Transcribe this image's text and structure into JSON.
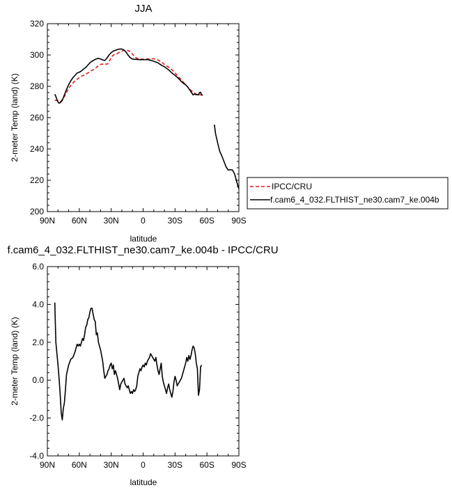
{
  "chart_data": [
    {
      "type": "line",
      "title": "JJA",
      "xlabel": "latitude",
      "ylabel": "2-meter Temp (land) (K)",
      "xlim": [
        90,
        -90
      ],
      "ylim": [
        200,
        320
      ],
      "x_ticks": [
        90,
        60,
        30,
        0,
        -30,
        -60,
        -90
      ],
      "x_tick_labels": [
        "90N",
        "60N",
        "30N",
        "0",
        "30S",
        "60S",
        "90S"
      ],
      "y_ticks": [
        200,
        220,
        240,
        260,
        280,
        300,
        320
      ],
      "y_tick_labels": [
        "200",
        "220",
        "240",
        "260",
        "280",
        "300",
        "320"
      ],
      "legend_placement": "right",
      "series": [
        {
          "name": "IPCC/CRU",
          "color": "#e41a1c",
          "dashed": true,
          "x": [
            83,
            82,
            80,
            79,
            78,
            77,
            76,
            74,
            72,
            70,
            68,
            66,
            64,
            62,
            60,
            58,
            56,
            54,
            52,
            50,
            48,
            46,
            44,
            42,
            40,
            38,
            36,
            34,
            32,
            30,
            28,
            26,
            24,
            22,
            20,
            18,
            16,
            14,
            12,
            10,
            8,
            6,
            4,
            2,
            0,
            -2,
            -4,
            -6,
            -8,
            -10,
            -12,
            -14,
            -16,
            -18,
            -20,
            -22,
            -24,
            -26,
            -28,
            -30,
            -32,
            -34,
            -36,
            -38,
            -40,
            -42,
            -44,
            -46,
            -48,
            -50,
            -52,
            -54,
            -56
          ],
          "y": [
            271.2,
            271.0,
            270.8,
            270.4,
            270.2,
            270.6,
            271.5,
            273.5,
            276.0,
            278.5,
            280.5,
            282.0,
            283.5,
            284.5,
            285.5,
            286.5,
            287.0,
            287.8,
            288.5,
            289.3,
            290.2,
            291.0,
            292.0,
            293.2,
            294.0,
            294.2,
            294.5,
            294.0,
            295.5,
            298.5,
            300.0,
            300.5,
            301.0,
            301.8,
            302.5,
            303.0,
            303.0,
            302.8,
            302.0,
            300.5,
            299.0,
            297.9,
            297.6,
            297.4,
            297.3,
            297.4,
            297.5,
            297.5,
            297.6,
            297.6,
            297.3,
            296.8,
            296.0,
            295.0,
            294.0,
            293.2,
            292.2,
            291.2,
            290.0,
            288.5,
            287.0,
            285.5,
            284.2,
            282.5,
            281.0,
            279.5,
            278.0,
            276.8,
            275.8,
            275.0,
            274.8,
            274.5,
            274.3
          ]
        },
        {
          "name": "f.cam6_4_032.FLTHIST_ne30.cam7_ke.004b",
          "color": "#000000",
          "dashed": false,
          "x": [
            83,
            82,
            81,
            80,
            79,
            78,
            77,
            76,
            74,
            72,
            70,
            68,
            66,
            64,
            62,
            60,
            58,
            56,
            54,
            52,
            50,
            48,
            46,
            44,
            42,
            40,
            38,
            36,
            34,
            32,
            30,
            28,
            26,
            24,
            22,
            20,
            18,
            16,
            14,
            12,
            10,
            8,
            6,
            4,
            2,
            0,
            -2,
            -4,
            -6,
            -8,
            -10,
            -12,
            -14,
            -16,
            -18,
            -20,
            -22,
            -24,
            -26,
            -28,
            -30,
            -32,
            -34,
            -36,
            -38,
            -40,
            -42,
            -44,
            -46,
            -47,
            -48,
            -50,
            -52,
            -53,
            -54,
            -55,
            -56,
            null,
            -67,
            -68,
            -70,
            -72,
            -74,
            -76,
            -78,
            -80,
            -82,
            -84,
            -86,
            -88,
            -90
          ],
          "y": [
            275.0,
            273.5,
            271.5,
            270.0,
            269.2,
            269.5,
            270.2,
            271.0,
            274.5,
            278.0,
            281.0,
            283.5,
            285.5,
            287.0,
            288.5,
            289.0,
            289.8,
            291.0,
            292.0,
            293.5,
            295.0,
            296.0,
            296.8,
            297.5,
            297.8,
            297.5,
            296.8,
            296.5,
            298.0,
            300.0,
            301.5,
            302.5,
            303.0,
            303.5,
            303.8,
            303.8,
            303.2,
            301.8,
            299.8,
            298.2,
            297.4,
            297.2,
            297.2,
            297.0,
            297.1,
            297.0,
            297.0,
            297.1,
            296.8,
            296.4,
            296.0,
            295.5,
            295.0,
            294.0,
            293.2,
            292.5,
            291.5,
            290.5,
            289.2,
            288.0,
            287.0,
            285.8,
            284.5,
            283.0,
            281.8,
            281.0,
            279.5,
            277.5,
            275.5,
            274.5,
            275.0,
            274.7,
            274.5,
            276.0,
            276.2,
            274.5,
            274.8,
            null,
            255.5,
            250.0,
            244.0,
            238.5,
            235.5,
            232.0,
            228.5,
            226.5,
            226.8,
            226.5,
            224.0,
            219.0,
            214.5
          ]
        }
      ]
    },
    {
      "type": "line",
      "title": "f.cam6_4_032.FLTHIST_ne30.cam7_ke.004b - IPCC/CRU",
      "xlabel": "latitude",
      "ylabel": "2-meter Temp (land) (K)",
      "xlim": [
        90,
        -90
      ],
      "ylim": [
        -4.0,
        6.0
      ],
      "x_ticks": [
        90,
        60,
        30,
        0,
        -30,
        -60,
        -90
      ],
      "x_tick_labels": [
        "90N",
        "60N",
        "30N",
        "0",
        "30S",
        "60S",
        "90S"
      ],
      "y_ticks": [
        -4.0,
        -2.0,
        0.0,
        2.0,
        4.0,
        6.0
      ],
      "y_tick_labels": [
        "-4.0",
        "-2.0",
        "0.0",
        "2.0",
        "4.0",
        "6.0"
      ],
      "series": [
        {
          "color": "#000000",
          "x": [
            83,
            82.5,
            82,
            81,
            80,
            79,
            78,
            77.5,
            77,
            76,
            75,
            74,
            73,
            72,
            70,
            68,
            66,
            64,
            62,
            61,
            60,
            59,
            58,
            57,
            56,
            55,
            54,
            53,
            52,
            51,
            50,
            49,
            48,
            47,
            46,
            45,
            44,
            43,
            42,
            41,
            40,
            39,
            38,
            37,
            36,
            35,
            34,
            33,
            32,
            31,
            30,
            29,
            28,
            27,
            26,
            25,
            24,
            23,
            22,
            21,
            20,
            19,
            18,
            17,
            16,
            15,
            14,
            13,
            12,
            11,
            10,
            9,
            8,
            7,
            6,
            5,
            4,
            3,
            2,
            1,
            0,
            -1,
            -2,
            -3,
            -4,
            -5,
            -6,
            -7,
            -8,
            -9,
            -10,
            -11,
            -12,
            -13,
            -14,
            -15,
            -16,
            -17,
            -18,
            -19,
            -20,
            -21,
            -22,
            -23,
            -24,
            -25,
            -26,
            -27,
            -28,
            -29,
            -30,
            -31,
            -32,
            -33,
            -34,
            -35,
            -36,
            -37,
            -38,
            -39,
            -40,
            -41,
            -42,
            -43,
            -44,
            -45,
            -46,
            -47,
            -48,
            -49,
            -50,
            -51,
            -52,
            -53,
            -54,
            -55
          ],
          "y": [
            4.1,
            3.0,
            2.0,
            1.4,
            0.8,
            0.1,
            -0.7,
            -1.2,
            -1.7,
            -2.1,
            -1.5,
            -1.2,
            -0.5,
            0.3,
            0.8,
            1.1,
            1.2,
            1.5,
            1.9,
            1.8,
            1.9,
            1.8,
            2.0,
            2.2,
            2.1,
            2.4,
            2.8,
            2.9,
            3.2,
            3.3,
            3.6,
            3.8,
            3.8,
            3.5,
            3.2,
            3.1,
            2.4,
            2.5,
            2.0,
            1.8,
            1.6,
            1.3,
            1.0,
            0.5,
            0.1,
            0.2,
            0.3,
            0.5,
            0.6,
            0.8,
            0.9,
            0.6,
            0.8,
            0.3,
            0.5,
            0.3,
            0.1,
            -0.2,
            -0.5,
            -0.2,
            -0.1,
            0.0,
            0.1,
            -0.2,
            -0.3,
            -0.4,
            -0.3,
            -0.5,
            -0.7,
            -0.6,
            -0.7,
            -0.5,
            -0.6,
            -0.5,
            -0.3,
            0.2,
            0.4,
            0.6,
            0.5,
            0.7,
            0.8,
            0.7,
            0.9,
            0.8,
            1.0,
            1.1,
            1.2,
            1.4,
            1.3,
            1.2,
            1.1,
            1.0,
            1.2,
            0.8,
            0.5,
            0.3,
            0.6,
            0.9,
            0.2,
            -0.1,
            -0.3,
            -0.5,
            -0.7,
            -0.4,
            -0.2,
            -0.5,
            -0.7,
            -0.9,
            -0.6,
            -0.1,
            0.2,
            0.0,
            -0.3,
            -0.2,
            -0.1,
            0.0,
            0.1,
            0.3,
            0.5,
            0.7,
            0.9,
            1.2,
            1.0,
            1.3,
            1.1,
            1.3,
            1.6,
            1.8,
            1.7,
            1.4,
            0.9,
            0.6,
            -0.8,
            -0.5,
            0.7,
            0.8
          ]
        }
      ]
    }
  ]
}
